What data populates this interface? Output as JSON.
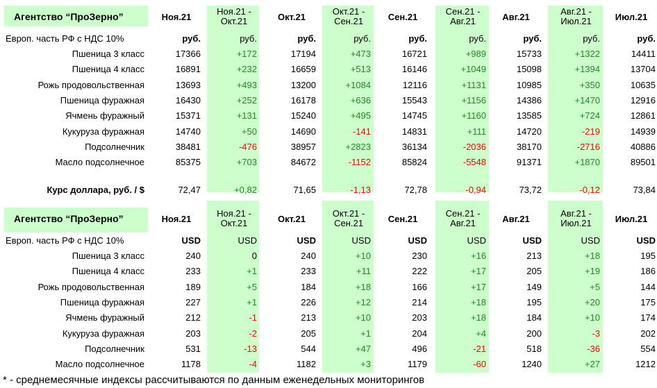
{
  "agency_title": "Агентство “ПроЗерно”",
  "columns": [
    {
      "main": "Ноя.21",
      "type": "value"
    },
    {
      "main": "Ноя.21 -",
      "sub": "Окт.21",
      "type": "diff"
    },
    {
      "main": "Окт.21",
      "type": "value"
    },
    {
      "main": "Окт.21 -",
      "sub": "Сен.21",
      "type": "diff"
    },
    {
      "main": "Сен.21",
      "type": "value"
    },
    {
      "main": "Сен.21 -",
      "sub": "Авг.21",
      "type": "diff"
    },
    {
      "main": "Авг.21",
      "type": "value"
    },
    {
      "main": "Авг.21 -",
      "sub": "Июл.21",
      "type": "diff"
    },
    {
      "main": "Июл.21",
      "type": "value"
    }
  ],
  "rub_table": {
    "subtitle": "Европ. часть РФ с НДС 10%",
    "unit": "руб.",
    "rows": [
      {
        "label": "Пшеница 3 класс",
        "values": [
          "17366",
          "+172",
          "17194",
          "+473",
          "16721",
          "+989",
          "15733",
          "+1322",
          "14411"
        ]
      },
      {
        "label": "Пшеница 4 класс",
        "values": [
          "16891",
          "+232",
          "16659",
          "+513",
          "16146",
          "+1049",
          "15098",
          "+1394",
          "13704"
        ]
      },
      {
        "label": "Рожь продовольственная",
        "values": [
          "13693",
          "+493",
          "13200",
          "+1084",
          "12116",
          "+1131",
          "10985",
          "+350",
          "10635"
        ]
      },
      {
        "label": "Пшеница фуражная",
        "values": [
          "16430",
          "+252",
          "16178",
          "+636",
          "15543",
          "+1156",
          "14386",
          "+1470",
          "12916"
        ]
      },
      {
        "label": "Ячмень фуражный",
        "values": [
          "15371",
          "+131",
          "15240",
          "+495",
          "14745",
          "+1160",
          "13585",
          "+724",
          "12861"
        ]
      },
      {
        "label": "Кукуруза фуражная",
        "values": [
          "14740",
          "+50",
          "14690",
          "-141",
          "14831",
          "+111",
          "14720",
          "-219",
          "14939"
        ]
      },
      {
        "label": "Подсолнечник",
        "values": [
          "38481",
          "-476",
          "38957",
          "+2823",
          "36134",
          "-2036",
          "38170",
          "-2716",
          "40886"
        ]
      },
      {
        "label": "Масло подсолнечное",
        "values": [
          "85375",
          "+703",
          "84672",
          "-1152",
          "85824",
          "-5548",
          "91371",
          "+1870",
          "89501"
        ]
      }
    ]
  },
  "dollar_row": {
    "label": "Курс доллара, руб. / $",
    "values": [
      "72,47",
      "+0,82",
      "71,65",
      "-1,13",
      "72,78",
      "-0,94",
      "73,72",
      "-0,12",
      "73,84"
    ]
  },
  "usd_table": {
    "subtitle": "Европ. часть РФ с НДС 10%",
    "unit": "USD",
    "rows": [
      {
        "label": "Пшеница 3 класс",
        "values": [
          "240",
          "0",
          "240",
          "+10",
          "230",
          "+16",
          "213",
          "+18",
          "195"
        ]
      },
      {
        "label": "Пшеница 4 класс",
        "values": [
          "233",
          "+1",
          "233",
          "+11",
          "222",
          "+17",
          "205",
          "+19",
          "186"
        ]
      },
      {
        "label": "Рожь продовольственная",
        "values": [
          "189",
          "+5",
          "184",
          "+18",
          "166",
          "+17",
          "149",
          "+5",
          "144"
        ]
      },
      {
        "label": "Пшеница фуражная",
        "values": [
          "227",
          "+1",
          "226",
          "+12",
          "214",
          "+18",
          "195",
          "+20",
          "175"
        ]
      },
      {
        "label": "Ячмень фуражный",
        "values": [
          "212",
          "-1",
          "213",
          "+10",
          "203",
          "+18",
          "184",
          "+10",
          "174"
        ]
      },
      {
        "label": "Кукуруза фуражная",
        "values": [
          "203",
          "-2",
          "205",
          "+1",
          "204",
          "+4",
          "200",
          "-3",
          "202"
        ]
      },
      {
        "label": "Подсолнечник",
        "values": [
          "531",
          "-13",
          "544",
          "+47",
          "496",
          "-21",
          "518",
          "-36",
          "554"
        ]
      },
      {
        "label": "Масло подсолнечное",
        "values": [
          "1178",
          "-4",
          "1182",
          "+3",
          "1179",
          "-60",
          "1240",
          "+27",
          "1212"
        ]
      }
    ]
  },
  "footnote": "* - среднемесячные индексы рассчитываются по данным еженедельных мониторингов",
  "colors": {
    "positive": "#228b22",
    "negative": "#ff0000",
    "highlight": "#ccffcc"
  }
}
